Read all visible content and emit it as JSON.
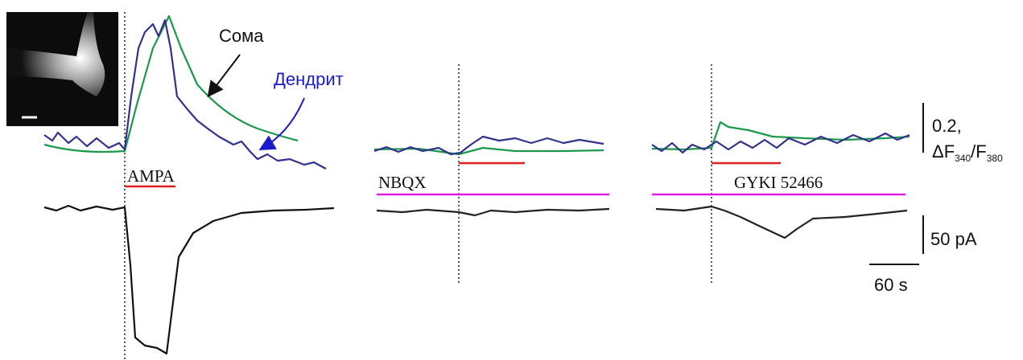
{
  "labels": {
    "soma": "Сома",
    "dendrite": "Дендрит",
    "ampa": "AMPA",
    "nbqx": "NBQX",
    "gyki": "GYKI 52466"
  },
  "scale_bars": {
    "fluorescence_value": "0.2,",
    "fluorescence_delta": "ΔF",
    "fluorescence_num": "340",
    "fluorescence_slash": "/F",
    "fluorescence_den": "380",
    "current": "50 pA",
    "time": "60 s"
  }
}
